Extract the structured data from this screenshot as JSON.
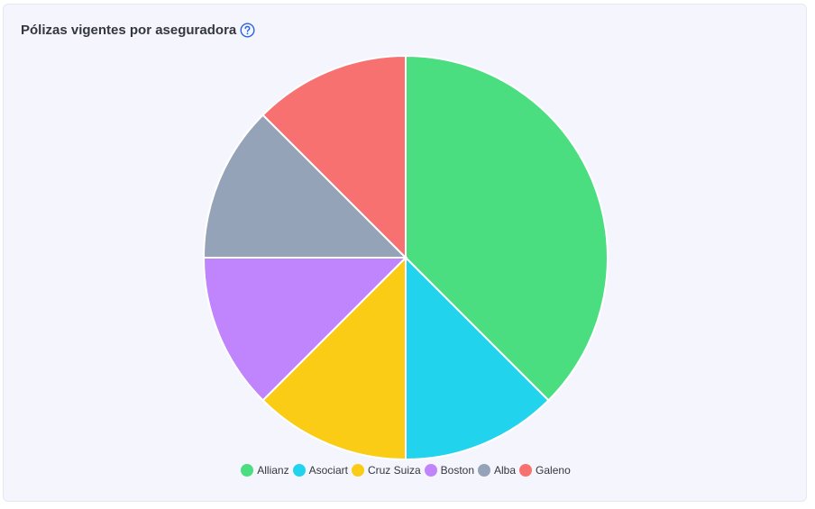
{
  "card": {
    "title": "Pólizas vigentes por aseguradora",
    "help_icon": "question-circle-icon"
  },
  "chart_data": {
    "type": "pie",
    "categories": [
      "Allianz",
      "Asociart",
      "Cruz Suiza",
      "Boston",
      "Alba",
      "Galeno"
    ],
    "values": [
      3,
      1,
      1,
      1,
      1,
      1
    ],
    "colors": [
      "#4ade80",
      "#22d3ee",
      "#facc15",
      "#c084fc",
      "#94a3b8",
      "#f87171"
    ],
    "legend_position": "bottom"
  }
}
